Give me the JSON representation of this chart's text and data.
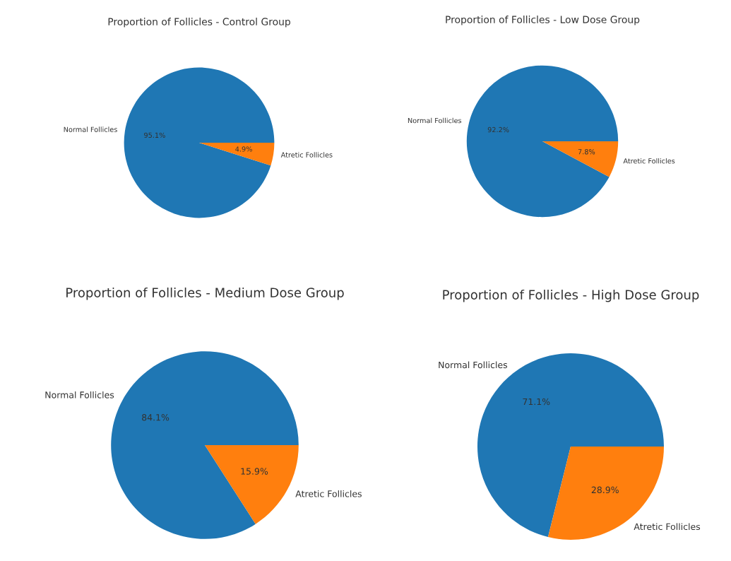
{
  "chart_data": [
    {
      "type": "pie",
      "title": "Proportion of Follicles - Control Group",
      "categories": [
        "Normal Follicles",
        "Atretic Follicles"
      ],
      "values": [
        95.1,
        4.9
      ],
      "colors": [
        "#1f77b4",
        "#ff7f0e"
      ],
      "value_labels": [
        "95.1%",
        "4.9%"
      ]
    },
    {
      "type": "pie",
      "title": "Proportion of Follicles - Low Dose Group",
      "categories": [
        "Normal Follicles",
        "Atretic Follicles"
      ],
      "values": [
        92.2,
        7.8
      ],
      "colors": [
        "#1f77b4",
        "#ff7f0e"
      ],
      "value_labels": [
        "92.2%",
        "7.8%"
      ]
    },
    {
      "type": "pie",
      "title": "Proportion of Follicles - Medium Dose Group",
      "categories": [
        "Normal Follicles",
        "Atretic Follicles"
      ],
      "values": [
        84.1,
        15.9
      ],
      "colors": [
        "#1f77b4",
        "#ff7f0e"
      ],
      "value_labels": [
        "84.1%",
        "15.9%"
      ]
    },
    {
      "type": "pie",
      "title": "Proportion of Follicles - High Dose Group",
      "categories": [
        "Normal Follicles",
        "Atretic Follicles"
      ],
      "values": [
        71.1,
        28.9
      ],
      "colors": [
        "#1f77b4",
        "#ff7f0e"
      ],
      "value_labels": [
        "71.1%",
        "28.9%"
      ]
    }
  ]
}
